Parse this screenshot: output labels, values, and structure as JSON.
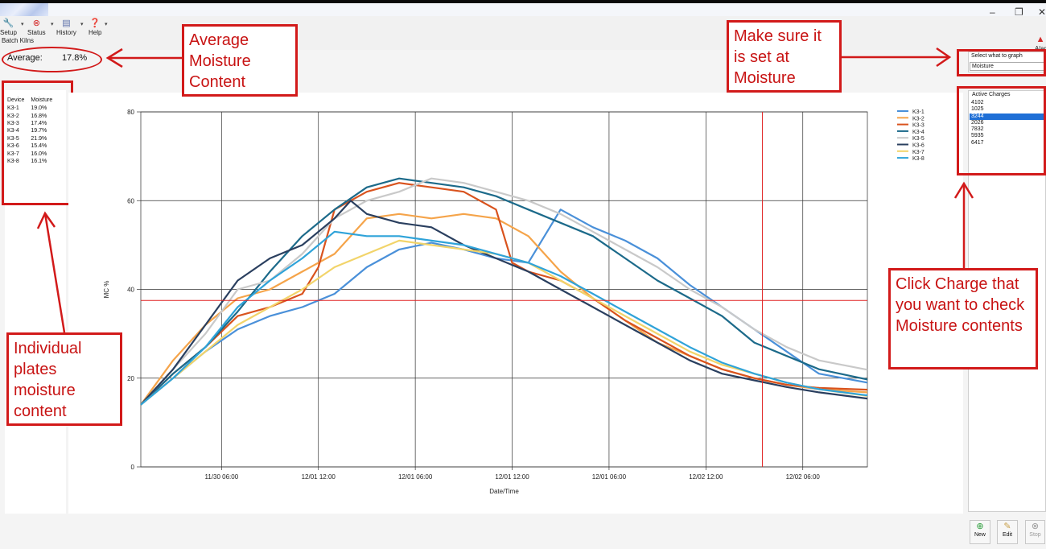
{
  "toolbar": {
    "items": [
      {
        "label": "Setup",
        "icon": "wrench-icon"
      },
      {
        "label": "Status",
        "icon": "status-icon"
      },
      {
        "label": "History",
        "icon": "history-icon"
      },
      {
        "label": "Help",
        "icon": "help-icon"
      }
    ],
    "alarm_label": "Alar",
    "section_label": "Batch Kilns"
  },
  "average": {
    "label": "Average:",
    "value": "17.8%"
  },
  "device_table": {
    "headers": [
      "Device",
      "Moisture"
    ],
    "rows": [
      [
        "K3-1",
        "19.0%"
      ],
      [
        "K3-2",
        "16.8%"
      ],
      [
        "K3-3",
        "17.4%"
      ],
      [
        "K3-4",
        "19.7%"
      ],
      [
        "K3-5",
        "21.9%"
      ],
      [
        "K3-6",
        "15.4%"
      ],
      [
        "K3-7",
        "16.0%"
      ],
      [
        "K3-8",
        "16.1%"
      ]
    ]
  },
  "graph_select": {
    "label": "Select what to graph",
    "value": "Moisture"
  },
  "active_charges": {
    "label": "Active Charges",
    "items": [
      "4102",
      "1025",
      "3244",
      "2026",
      "7832",
      "5935",
      "6417"
    ],
    "selected": "3244"
  },
  "bottom_buttons": [
    {
      "label": "New",
      "icon": "plus-icon",
      "color": "#2a9d3a"
    },
    {
      "label": "Edit",
      "icon": "pencil-icon",
      "color": "#c9a04a"
    },
    {
      "label": "Stop",
      "icon": "stop-icon",
      "color": "#9a9a9a"
    }
  ],
  "annotations": {
    "avg": "Average Moisture Content",
    "graph": "Make sure it is set at Moisture",
    "charge": "Click Charge that you want to check Moisture contents",
    "plates": "Individual plates moisture content"
  },
  "colors": {
    "annotation_red": "#d21a1a",
    "selection_blue": "#1f6fd6"
  },
  "chart_data": {
    "type": "line",
    "xlabel": "Date/Time",
    "ylabel": "MC %",
    "ylim": [
      0,
      80
    ],
    "yticks": [
      0,
      20,
      40,
      60,
      80
    ],
    "xlim": [
      0,
      90
    ],
    "xtick_labels": [
      "11/30 06:00",
      "12/01 12:00",
      "12/01 06:00",
      "12/01 12:00",
      "12/01 06:00",
      "12/02 12:00",
      "12/02 06:00"
    ],
    "xtick_values": [
      10,
      22,
      34,
      46,
      58,
      70,
      82
    ],
    "reference_line_y": 37.5,
    "reference_line_x": 77,
    "legend_position": "right",
    "series": [
      {
        "name": "K3-1",
        "color": "#4a90d9",
        "values": [
          [
            0,
            14
          ],
          [
            4,
            20
          ],
          [
            8,
            26
          ],
          [
            12,
            31
          ],
          [
            16,
            34
          ],
          [
            20,
            36
          ],
          [
            24,
            39
          ],
          [
            28,
            45
          ],
          [
            32,
            49
          ],
          [
            36,
            50.5
          ],
          [
            40,
            49
          ],
          [
            44,
            47
          ],
          [
            48,
            46
          ],
          [
            52,
            58
          ],
          [
            56,
            54
          ],
          [
            60,
            51
          ],
          [
            64,
            47
          ],
          [
            68,
            41
          ],
          [
            72,
            36
          ],
          [
            76,
            31
          ],
          [
            80,
            26
          ],
          [
            84,
            21
          ],
          [
            90,
            19
          ]
        ]
      },
      {
        "name": "K3-2",
        "color": "#f5a44a",
        "values": [
          [
            0,
            14
          ],
          [
            4,
            24
          ],
          [
            8,
            32
          ],
          [
            12,
            38
          ],
          [
            16,
            40
          ],
          [
            20,
            44
          ],
          [
            24,
            48
          ],
          [
            28,
            56
          ],
          [
            32,
            57
          ],
          [
            36,
            56
          ],
          [
            40,
            57
          ],
          [
            44,
            56
          ],
          [
            48,
            52
          ],
          [
            52,
            44
          ],
          [
            56,
            38
          ],
          [
            60,
            33
          ],
          [
            64,
            28
          ],
          [
            68,
            25
          ],
          [
            72,
            22
          ],
          [
            76,
            20
          ],
          [
            80,
            18.5
          ],
          [
            84,
            17.5
          ],
          [
            90,
            16.8
          ]
        ]
      },
      {
        "name": "K3-3",
        "color": "#d9531e",
        "values": [
          [
            0,
            14
          ],
          [
            4,
            21
          ],
          [
            8,
            27
          ],
          [
            12,
            34
          ],
          [
            16,
            36
          ],
          [
            20,
            39
          ],
          [
            22,
            45
          ],
          [
            24,
            58
          ],
          [
            28,
            62
          ],
          [
            32,
            64
          ],
          [
            36,
            63
          ],
          [
            40,
            62
          ],
          [
            44,
            58
          ],
          [
            46,
            46
          ],
          [
            48,
            44
          ],
          [
            52,
            42
          ],
          [
            56,
            38
          ],
          [
            60,
            33
          ],
          [
            64,
            29
          ],
          [
            68,
            25
          ],
          [
            72,
            22
          ],
          [
            76,
            20
          ],
          [
            80,
            18.5
          ],
          [
            84,
            17.8
          ],
          [
            90,
            17.4
          ]
        ]
      },
      {
        "name": "K3-4",
        "color": "#1c6a8a",
        "values": [
          [
            0,
            14
          ],
          [
            4,
            21
          ],
          [
            8,
            27
          ],
          [
            12,
            35
          ],
          [
            16,
            44
          ],
          [
            20,
            52
          ],
          [
            24,
            58
          ],
          [
            28,
            63
          ],
          [
            32,
            65
          ],
          [
            36,
            64
          ],
          [
            40,
            63
          ],
          [
            44,
            61
          ],
          [
            48,
            58
          ],
          [
            52,
            55
          ],
          [
            56,
            52
          ],
          [
            60,
            47
          ],
          [
            64,
            42
          ],
          [
            68,
            38
          ],
          [
            72,
            34
          ],
          [
            76,
            28
          ],
          [
            80,
            25
          ],
          [
            84,
            22
          ],
          [
            90,
            19.7
          ]
        ]
      },
      {
        "name": "K3-5",
        "color": "#c9c9c9",
        "values": [
          [
            0,
            14
          ],
          [
            4,
            22
          ],
          [
            8,
            30
          ],
          [
            12,
            40
          ],
          [
            16,
            42
          ],
          [
            20,
            48
          ],
          [
            24,
            56
          ],
          [
            28,
            60
          ],
          [
            32,
            62
          ],
          [
            36,
            65
          ],
          [
            40,
            64
          ],
          [
            44,
            62
          ],
          [
            48,
            60
          ],
          [
            52,
            57
          ],
          [
            56,
            53
          ],
          [
            60,
            49
          ],
          [
            64,
            45
          ],
          [
            68,
            40
          ],
          [
            72,
            36
          ],
          [
            76,
            31
          ],
          [
            80,
            27
          ],
          [
            84,
            24
          ],
          [
            90,
            21.9
          ]
        ]
      },
      {
        "name": "K3-6",
        "color": "#2a3f5f",
        "values": [
          [
            0,
            14
          ],
          [
            4,
            22
          ],
          [
            8,
            32
          ],
          [
            12,
            42
          ],
          [
            16,
            47
          ],
          [
            20,
            50
          ],
          [
            24,
            56
          ],
          [
            26,
            60
          ],
          [
            28,
            57
          ],
          [
            32,
            55
          ],
          [
            36,
            54
          ],
          [
            40,
            50
          ],
          [
            44,
            47
          ],
          [
            48,
            44
          ],
          [
            52,
            40
          ],
          [
            56,
            36
          ],
          [
            60,
            32
          ],
          [
            64,
            28
          ],
          [
            68,
            24
          ],
          [
            72,
            21
          ],
          [
            76,
            19.5
          ],
          [
            80,
            18
          ],
          [
            84,
            16.8
          ],
          [
            90,
            15.4
          ]
        ]
      },
      {
        "name": "K3-7",
        "color": "#f2d46a",
        "values": [
          [
            0,
            14
          ],
          [
            4,
            20
          ],
          [
            8,
            26
          ],
          [
            12,
            32
          ],
          [
            16,
            36
          ],
          [
            20,
            40
          ],
          [
            24,
            45
          ],
          [
            28,
            48
          ],
          [
            32,
            51
          ],
          [
            36,
            50
          ],
          [
            40,
            49
          ],
          [
            44,
            48
          ],
          [
            48,
            46
          ],
          [
            52,
            42
          ],
          [
            56,
            38
          ],
          [
            60,
            34
          ],
          [
            64,
            30
          ],
          [
            68,
            26
          ],
          [
            72,
            23
          ],
          [
            76,
            21
          ],
          [
            80,
            19
          ],
          [
            84,
            17.5
          ],
          [
            90,
            16
          ]
        ]
      },
      {
        "name": "K3-8",
        "color": "#2fa3d9",
        "values": [
          [
            0,
            14
          ],
          [
            4,
            20
          ],
          [
            8,
            27
          ],
          [
            12,
            36
          ],
          [
            16,
            42
          ],
          [
            20,
            47
          ],
          [
            24,
            53
          ],
          [
            28,
            52
          ],
          [
            32,
            52
          ],
          [
            36,
            51
          ],
          [
            40,
            50
          ],
          [
            44,
            48
          ],
          [
            48,
            46
          ],
          [
            52,
            43
          ],
          [
            56,
            39
          ],
          [
            60,
            35
          ],
          [
            64,
            31
          ],
          [
            68,
            27
          ],
          [
            72,
            23.5
          ],
          [
            76,
            21
          ],
          [
            80,
            19
          ],
          [
            84,
            17.5
          ],
          [
            90,
            16.1
          ]
        ]
      }
    ]
  }
}
